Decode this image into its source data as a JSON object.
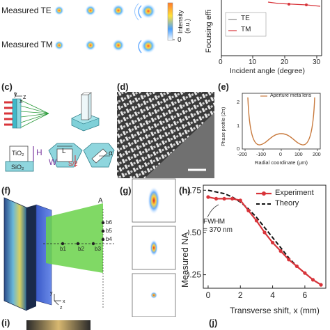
{
  "panel_labels": {
    "c": "(c)",
    "d": "(d)",
    "e": "(e)",
    "f": "(f)",
    "g": "(g)",
    "h": "(h)",
    "i": "(i)",
    "j": "(j)"
  },
  "panel_a": {
    "row1_label": "Measured TE",
    "row2_label": "Measured TM",
    "colorbar_label": "Intensity (a.u.)",
    "colorbar_bottom": "0"
  },
  "panel_b": {
    "ylabel": "Focusing effi",
    "xlabel": "Incident angle (degree)",
    "xticks": [
      "0",
      "10",
      "20",
      "30"
    ],
    "legend": [
      "TE",
      "TM"
    ]
  },
  "panel_c": {
    "tio2": "TiO₂",
    "sio2": "SiO₂",
    "h": "H",
    "w": "W",
    "l": "L",
    "s2": "S/2",
    "alpha": "α",
    "x": "x",
    "y": "y",
    "z": "z"
  },
  "panel_e": {
    "legend": "Aperture meta lens",
    "ylabel": "Phase profile (2π)",
    "xlabel": "Radial coordinate (μm)",
    "xticks": [
      "-200",
      "-100",
      "0",
      "100",
      "200"
    ],
    "yticks": [
      "0",
      "1",
      "2"
    ]
  },
  "panel_f": {
    "points": [
      "A",
      "b6",
      "b5",
      "b4",
      "b3",
      "b2",
      "b1"
    ],
    "axes": [
      "y",
      "x",
      "z"
    ]
  },
  "panel_h": {
    "annotation_line1": "FWHM",
    "annotation_line2": "= 370 nm"
  },
  "chart_data": {
    "type": "line",
    "xlabel": "Transverse shift, x (mm)",
    "ylabel": "Measured NA",
    "xlim": [
      -0.3,
      7.3
    ],
    "ylim": [
      0.17,
      0.78
    ],
    "xticks": [
      0,
      2,
      4,
      6
    ],
    "yticks": [
      0.25,
      0.5,
      0.75
    ],
    "ytick_labels": [
      "0.25",
      "0.50",
      "0.75"
    ],
    "legend_position": "top-right",
    "series": [
      {
        "name": "Experiment",
        "color": "#d8343a",
        "style": "solid-markers",
        "x": [
          0,
          0.5,
          1,
          1.5,
          2,
          2.5,
          3,
          3.5,
          4,
          4.5,
          5,
          5.5,
          6,
          6.5,
          7
        ],
        "y": [
          0.71,
          0.7,
          0.7,
          0.7,
          0.69,
          0.63,
          0.57,
          0.5,
          0.44,
          0.39,
          0.34,
          0.3,
          0.26,
          0.22,
          0.19
        ]
      },
      {
        "name": "Theory",
        "color": "#111111",
        "style": "dashed",
        "x": [
          0,
          0.5,
          1,
          1.5,
          2,
          2.5,
          3,
          3.5,
          4,
          4.5,
          5,
          5.5,
          6,
          6.5,
          7
        ],
        "y": [
          0.75,
          0.74,
          0.73,
          0.71,
          0.68,
          0.64,
          0.59,
          0.53,
          0.47,
          0.41,
          0.35,
          0.3,
          0.26,
          0.22,
          0.19
        ]
      }
    ]
  },
  "colors": {
    "accent": "#d8343a",
    "green": "#6ad24a",
    "phase": "#c8793c"
  }
}
